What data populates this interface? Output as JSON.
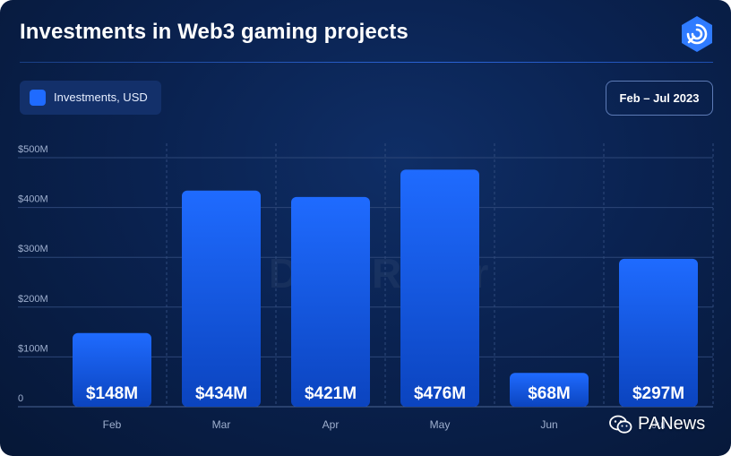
{
  "header": {
    "title": "Investments in Web3 gaming projects",
    "logo_icon": "dappradar-logo-icon"
  },
  "legend": {
    "label": "Investments, USD",
    "color": "#1f6bff"
  },
  "period": "Feb – Jul 2023",
  "watermark": "DappRadar",
  "source": {
    "label": "PANews",
    "icon": "wechat-icon"
  },
  "colors": {
    "background": "#0a2250",
    "bar_top": "#1f6bff",
    "bar_bottom": "#0a3fb0",
    "grid": "#3b5585",
    "axis_text": "#9fb0cf"
  },
  "chart_data": {
    "type": "bar",
    "title": "Investments in Web3 gaming projects",
    "categories": [
      "Feb",
      "Mar",
      "Apr",
      "May",
      "Jun",
      "Jul"
    ],
    "series": [
      {
        "name": "Investments, USD",
        "values": [
          148,
          434,
          421,
          476,
          68,
          297
        ],
        "labels": [
          "$148M",
          "$434M",
          "$421M",
          "$476M",
          "$68M",
          "$297M"
        ]
      }
    ],
    "yticks": [
      "0",
      "$100M",
      "$200M",
      "$300M",
      "$400M",
      "$500M"
    ],
    "ylim": [
      0,
      500
    ],
    "grid": true,
    "legend_position": "top-left"
  }
}
